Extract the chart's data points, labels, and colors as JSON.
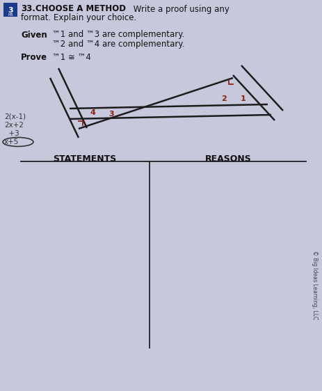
{
  "bg_color": "#b8b8cc",
  "page_bg": "#c8c8dc",
  "number_box_color": "#1a3a8a",
  "number_text": "3",
  "problem_number": "33.",
  "title_bold": "CHOOSE A METHOD",
  "title_normal": " Write a proof using any",
  "title_line2": "format. Explain your choice.",
  "given_label": "Given",
  "given_line1": "™1 and ™3 are complementary.",
  "given_line2": "™2 and ™4 are complementary.",
  "prove_label": "Prove",
  "prove_text": "™1 ≅ ™4",
  "statements_label": "STATEMENTS",
  "reasons_label": "REASONS",
  "copyright": "© Big Ideas Learning, LLC",
  "side_text_lines": [
    "2(x-1)",
    "2x+2",
    "  +3",
    "x+5"
  ],
  "angle_label_color": "#8b2010"
}
